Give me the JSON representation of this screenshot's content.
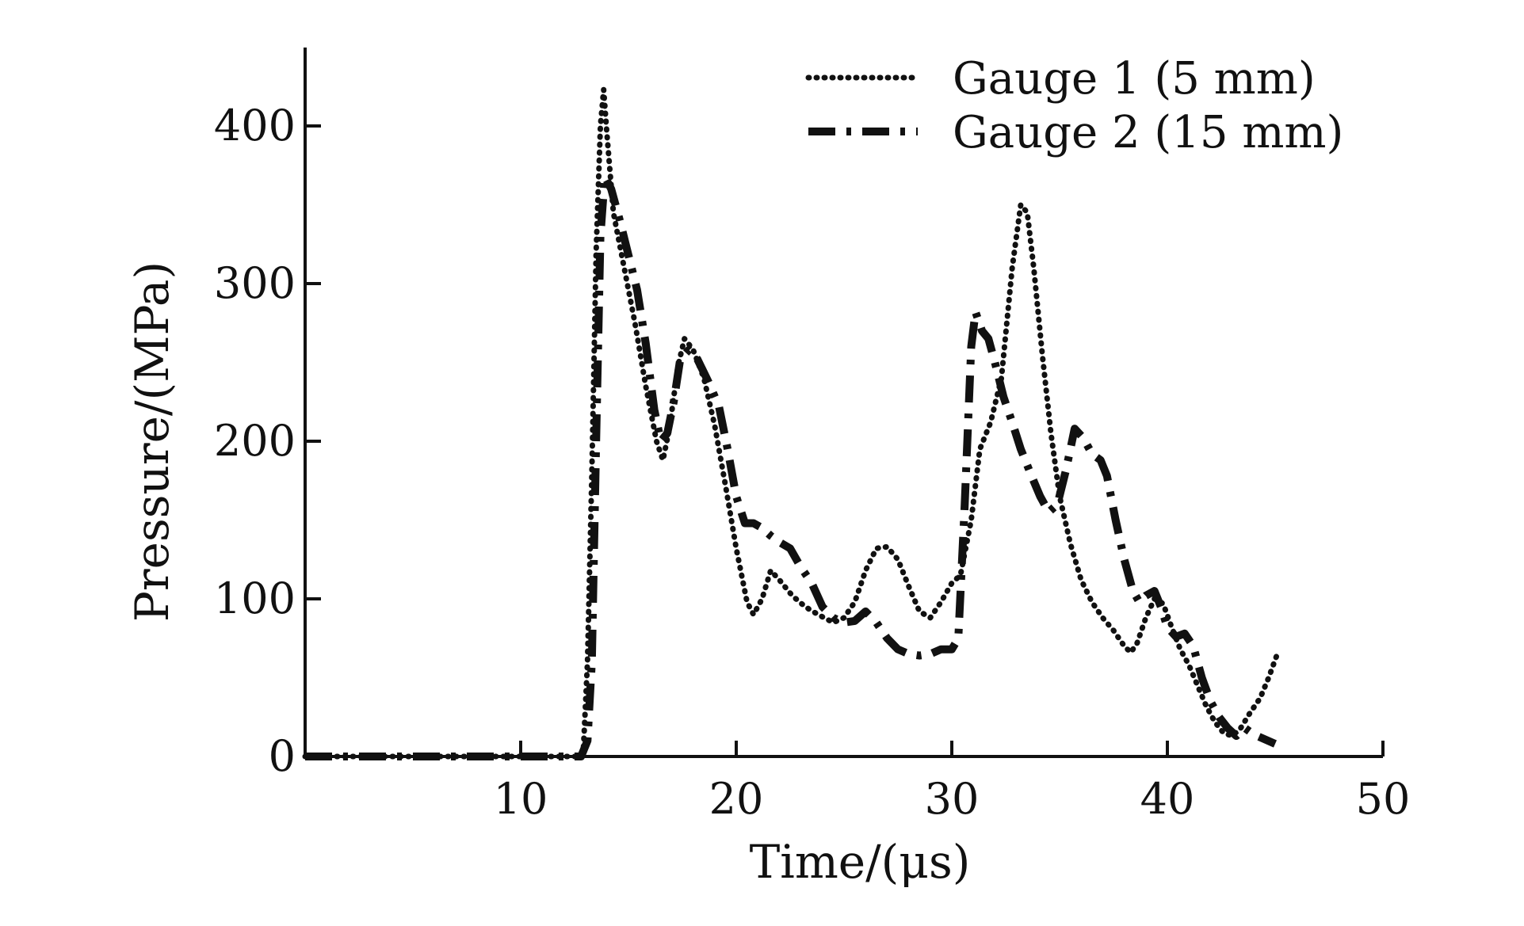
{
  "colors": {
    "background": "#ffffff",
    "ink": "#111111"
  },
  "chart_data": {
    "type": "line",
    "title": "",
    "xlabel": "Time/(μs)",
    "ylabel": "Pressure/(MPa)",
    "xlim": [
      0,
      50
    ],
    "ylim": [
      0,
      450
    ],
    "x_ticks": [
      0,
      10,
      20,
      30,
      40,
      50
    ],
    "x_tick_labels": [
      "",
      "10",
      "20",
      "30",
      "40",
      "50"
    ],
    "y_ticks": [
      0,
      100,
      200,
      300,
      400
    ],
    "y_tick_labels": [
      "0",
      "100",
      "200",
      "300",
      "400"
    ],
    "grid": false,
    "legend_position": "top-right",
    "series": [
      {
        "name": "Gauge 1 (5 mm)",
        "line_style": "dotted",
        "color": "#111111",
        "points": [
          [
            0,
            0
          ],
          [
            5,
            0
          ],
          [
            10,
            0
          ],
          [
            12.6,
            0
          ],
          [
            12.9,
            2
          ],
          [
            13.1,
            60
          ],
          [
            13.3,
            180
          ],
          [
            13.5,
            320
          ],
          [
            13.7,
            400
          ],
          [
            13.85,
            423
          ],
          [
            14.0,
            395
          ],
          [
            14.3,
            345
          ],
          [
            14.8,
            310
          ],
          [
            15.3,
            275
          ],
          [
            15.8,
            235
          ],
          [
            16.3,
            200
          ],
          [
            16.6,
            188
          ],
          [
            16.9,
            208
          ],
          [
            17.3,
            248
          ],
          [
            17.6,
            265
          ],
          [
            18.0,
            258
          ],
          [
            18.5,
            240
          ],
          [
            19.0,
            210
          ],
          [
            19.5,
            172
          ],
          [
            20.0,
            132
          ],
          [
            20.5,
            98
          ],
          [
            20.8,
            90
          ],
          [
            21.2,
            100
          ],
          [
            21.6,
            118
          ],
          [
            22.0,
            112
          ],
          [
            22.6,
            102
          ],
          [
            23.2,
            95
          ],
          [
            23.8,
            90
          ],
          [
            24.5,
            85
          ],
          [
            25.0,
            88
          ],
          [
            25.5,
            98
          ],
          [
            26.0,
            118
          ],
          [
            26.5,
            132
          ],
          [
            27.0,
            133
          ],
          [
            27.5,
            125
          ],
          [
            28.0,
            108
          ],
          [
            28.5,
            92
          ],
          [
            29.0,
            88
          ],
          [
            29.5,
            98
          ],
          [
            30.0,
            110
          ],
          [
            30.4,
            115
          ],
          [
            30.9,
            150
          ],
          [
            31.3,
            195
          ],
          [
            31.8,
            212
          ],
          [
            32.3,
            240
          ],
          [
            32.8,
            310
          ],
          [
            33.2,
            350
          ],
          [
            33.5,
            345
          ],
          [
            33.8,
            310
          ],
          [
            34.2,
            255
          ],
          [
            34.6,
            205
          ],
          [
            35.0,
            165
          ],
          [
            35.5,
            135
          ],
          [
            36.0,
            112
          ],
          [
            36.5,
            98
          ],
          [
            37.0,
            88
          ],
          [
            37.5,
            80
          ],
          [
            38.0,
            70
          ],
          [
            38.3,
            66
          ],
          [
            38.6,
            72
          ],
          [
            39.0,
            88
          ],
          [
            39.4,
            100
          ],
          [
            39.8,
            97
          ],
          [
            40.2,
            82
          ],
          [
            40.6,
            68
          ],
          [
            41.0,
            58
          ],
          [
            41.4,
            45
          ],
          [
            41.8,
            32
          ],
          [
            42.2,
            22
          ],
          [
            42.6,
            15
          ],
          [
            43.0,
            13
          ],
          [
            43.4,
            18
          ],
          [
            43.8,
            27
          ],
          [
            44.3,
            37
          ],
          [
            44.7,
            50
          ],
          [
            45.1,
            65
          ]
        ]
      },
      {
        "name": "Gauge 2 (15 mm)",
        "line_style": "dash-dot",
        "color": "#111111",
        "points": [
          [
            0,
            0
          ],
          [
            5,
            0
          ],
          [
            10,
            0
          ],
          [
            12.8,
            0
          ],
          [
            13.1,
            10
          ],
          [
            13.3,
            60
          ],
          [
            13.5,
            200
          ],
          [
            13.7,
            330
          ],
          [
            13.9,
            368
          ],
          [
            14.2,
            360
          ],
          [
            14.6,
            340
          ],
          [
            15.0,
            318
          ],
          [
            15.4,
            296
          ],
          [
            15.8,
            262
          ],
          [
            16.2,
            220
          ],
          [
            16.5,
            200
          ],
          [
            16.8,
            205
          ],
          [
            17.1,
            225
          ],
          [
            17.4,
            252
          ],
          [
            17.8,
            258
          ],
          [
            18.2,
            252
          ],
          [
            18.7,
            238
          ],
          [
            19.2,
            222
          ],
          [
            19.6,
            195
          ],
          [
            20.0,
            165
          ],
          [
            20.4,
            148
          ],
          [
            20.8,
            148
          ],
          [
            21.2,
            145
          ],
          [
            21.6,
            140
          ],
          [
            22.0,
            136
          ],
          [
            22.5,
            132
          ],
          [
            23.0,
            120
          ],
          [
            23.5,
            110
          ],
          [
            24.0,
            95
          ],
          [
            24.5,
            88
          ],
          [
            25.0,
            85
          ],
          [
            25.5,
            86
          ],
          [
            26.0,
            92
          ],
          [
            26.5,
            85
          ],
          [
            27.0,
            75
          ],
          [
            27.5,
            68
          ],
          [
            28.0,
            65
          ],
          [
            28.5,
            64
          ],
          [
            29.0,
            65
          ],
          [
            29.5,
            68
          ],
          [
            30.0,
            68
          ],
          [
            30.3,
            75
          ],
          [
            30.6,
            160
          ],
          [
            30.9,
            260
          ],
          [
            31.1,
            282
          ],
          [
            31.4,
            270
          ],
          [
            31.7,
            265
          ],
          [
            32.0,
            250
          ],
          [
            32.4,
            228
          ],
          [
            32.8,
            212
          ],
          [
            33.2,
            195
          ],
          [
            33.7,
            178
          ],
          [
            34.1,
            165
          ],
          [
            34.5,
            155
          ],
          [
            34.9,
            160
          ],
          [
            35.3,
            182
          ],
          [
            35.7,
            208
          ],
          [
            36.1,
            202
          ],
          [
            36.5,
            192
          ],
          [
            36.9,
            188
          ],
          [
            37.2,
            178
          ],
          [
            37.6,
            150
          ],
          [
            38.0,
            125
          ],
          [
            38.4,
            105
          ],
          [
            38.7,
            98
          ],
          [
            39.0,
            102
          ],
          [
            39.4,
            105
          ],
          [
            39.7,
            95
          ],
          [
            40.0,
            82
          ],
          [
            40.4,
            76
          ],
          [
            40.8,
            78
          ],
          [
            41.2,
            70
          ],
          [
            41.6,
            50
          ],
          [
            42.0,
            35
          ],
          [
            42.4,
            25
          ],
          [
            42.8,
            18
          ],
          [
            43.2,
            13
          ],
          [
            43.6,
            18
          ],
          [
            44.0,
            14
          ],
          [
            44.5,
            11
          ],
          [
            45.0,
            8
          ]
        ]
      }
    ]
  }
}
